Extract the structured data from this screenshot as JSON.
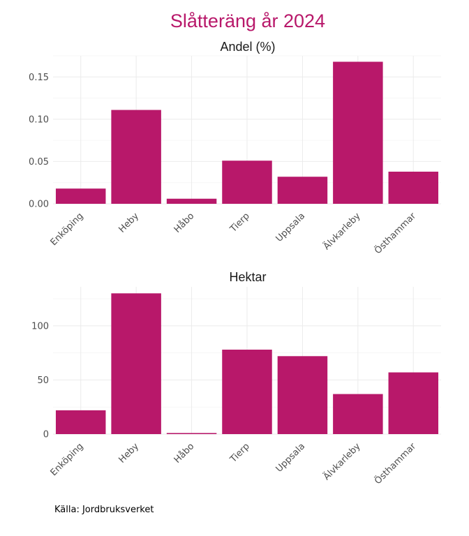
{
  "title": "Slåtteräng år 2024",
  "caption": "Källa: Jordbruksverket",
  "colors": {
    "title": "#b8186a",
    "bar": "#b8186a",
    "grid": "#ebebeb",
    "text": "#4d4d4d"
  },
  "chart_data": [
    {
      "type": "bar",
      "panel_title": "Andel (%)",
      "categories": [
        "Enköping",
        "Heby",
        "Håbo",
        "Tierp",
        "Uppsala",
        "Älvkarleby",
        "Östhammar"
      ],
      "values": [
        0.018,
        0.111,
        0.006,
        0.051,
        0.032,
        0.168,
        0.038
      ],
      "yticks": [
        "0.00",
        "0.05",
        "0.10",
        "0.15"
      ],
      "ytick_values": [
        0,
        0.05,
        0.1,
        0.15
      ],
      "ylim": [
        0,
        0.175
      ],
      "grid": true
    },
    {
      "type": "bar",
      "panel_title": "Hektar",
      "categories": [
        "Enköping",
        "Heby",
        "Håbo",
        "Tierp",
        "Uppsala",
        "Älvkarleby",
        "Östhammar"
      ],
      "values": [
        22,
        130,
        1,
        78,
        72,
        37,
        57
      ],
      "yticks": [
        "0",
        "50",
        "100"
      ],
      "ytick_values": [
        0,
        50,
        100
      ],
      "ylim": [
        0,
        136
      ],
      "grid": true
    }
  ]
}
